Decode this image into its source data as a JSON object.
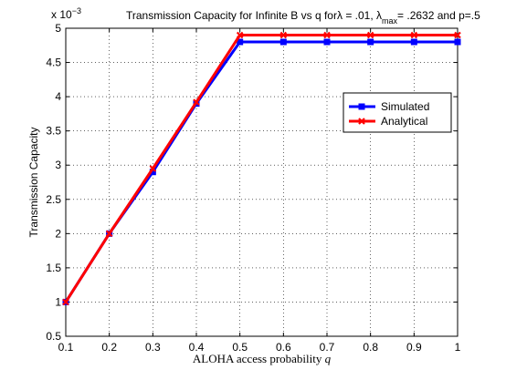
{
  "chart_data": {
    "type": "line",
    "title": {
      "prefix": "Transmission Capacity for Infinite B vs q for",
      "lambda_sym": "λ",
      "lambda_value": " = .01, ",
      "lambda_max_sym": "λ",
      "lambda_max_sub": "max",
      "lambda_max_value": "= .2632 and  p=.5"
    },
    "xlabel": {
      "text": "ALOHA access probability ",
      "var": "q"
    },
    "ylabel": "Transmission Capacity",
    "y_multiplier": {
      "base": "x 10",
      "exponent": "−3"
    },
    "xlim": [
      0.1,
      1
    ],
    "ylim": [
      0.5,
      5
    ],
    "x_ticks": [
      "0.1",
      "0.2",
      "0.3",
      "0.4",
      "0.5",
      "0.6",
      "0.7",
      "0.8",
      "0.9",
      "1"
    ],
    "y_ticks": [
      "0.5",
      "1",
      "1.5",
      "2",
      "2.5",
      "3",
      "3.5",
      "4",
      "4.5",
      "5"
    ],
    "grid": true,
    "legend_position": "right",
    "x": [
      0.1,
      0.2,
      0.3,
      0.4,
      0.5,
      0.6,
      0.7,
      0.8,
      0.9,
      1.0
    ],
    "series": [
      {
        "name": "Simulated",
        "color": "#0000ff",
        "marker": "square",
        "values": [
          1.0,
          2.0,
          2.9,
          3.9,
          4.8,
          4.8,
          4.8,
          4.8,
          4.8,
          4.8
        ]
      },
      {
        "name": "Analytical",
        "color": "#ff0000",
        "marker": "x",
        "values": [
          1.0,
          2.0,
          2.95,
          3.92,
          4.9,
          4.9,
          4.9,
          4.9,
          4.9,
          4.9
        ]
      }
    ]
  }
}
